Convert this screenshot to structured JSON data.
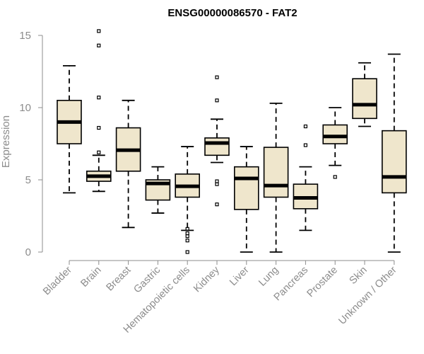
{
  "chart_data": {
    "type": "boxplot",
    "title": "ENSG00000086570 - FAT2",
    "xlabel": "",
    "ylabel": "Expression",
    "ylim": [
      0,
      15
    ],
    "yticks": [
      0,
      5,
      10,
      15
    ],
    "categories": [
      "Bladder",
      "Brain",
      "Breast",
      "Gastric",
      "Hematopoietic cells",
      "Kidney",
      "Liver",
      "Lung",
      "Pancreas",
      "Prostate",
      "Skin",
      "Unknown / Other"
    ],
    "boxes": [
      {
        "name": "Bladder",
        "whisker_low": 4.1,
        "q1": 7.5,
        "median": 9.0,
        "q3": 10.5,
        "whisker_high": 12.9,
        "outliers": []
      },
      {
        "name": "Brain",
        "whisker_low": 4.2,
        "q1": 4.9,
        "median": 5.25,
        "q3": 5.6,
        "whisker_high": 6.7,
        "outliers": [
          6.9,
          8.6,
          10.7,
          14.3,
          15.3
        ]
      },
      {
        "name": "Breast",
        "whisker_low": 1.7,
        "q1": 5.6,
        "median": 7.05,
        "q3": 8.6,
        "whisker_high": 10.5,
        "outliers": []
      },
      {
        "name": "Gastric",
        "whisker_low": 2.7,
        "q1": 3.6,
        "median": 4.75,
        "q3": 5.0,
        "whisker_high": 5.9,
        "outliers": []
      },
      {
        "name": "Hematopoietic cells",
        "whisker_low": 1.5,
        "q1": 3.8,
        "median": 4.55,
        "q3": 5.4,
        "whisker_high": 7.3,
        "outliers": [
          1.3,
          1.1,
          0.8,
          0.0,
          1.6
        ]
      },
      {
        "name": "Kidney",
        "whisker_low": 6.2,
        "q1": 6.7,
        "median": 7.55,
        "q3": 7.9,
        "whisker_high": 9.2,
        "outliers": [
          3.3,
          4.7,
          4.9,
          10.5,
          12.1
        ]
      },
      {
        "name": "Liver",
        "whisker_low": 0.0,
        "q1": 2.95,
        "median": 5.1,
        "q3": 5.9,
        "whisker_high": 7.3,
        "outliers": []
      },
      {
        "name": "Lung",
        "whisker_low": 0.0,
        "q1": 3.8,
        "median": 4.6,
        "q3": 7.25,
        "whisker_high": 10.3,
        "outliers": []
      },
      {
        "name": "Pancreas",
        "whisker_low": 1.5,
        "q1": 3.0,
        "median": 3.75,
        "q3": 4.7,
        "whisker_high": 5.9,
        "outliers": [
          7.4,
          8.7
        ]
      },
      {
        "name": "Prostate",
        "whisker_low": 6.0,
        "q1": 7.5,
        "median": 8.0,
        "q3": 8.8,
        "whisker_high": 10.0,
        "outliers": [
          5.2
        ]
      },
      {
        "name": "Skin",
        "whisker_low": 8.7,
        "q1": 9.25,
        "median": 10.2,
        "q3": 12.0,
        "whisker_high": 13.1,
        "outliers": []
      },
      {
        "name": "Unknown / Other",
        "whisker_low": 0.0,
        "q1": 4.1,
        "median": 5.2,
        "q3": 8.4,
        "whisker_high": 13.7,
        "outliers": []
      }
    ]
  }
}
